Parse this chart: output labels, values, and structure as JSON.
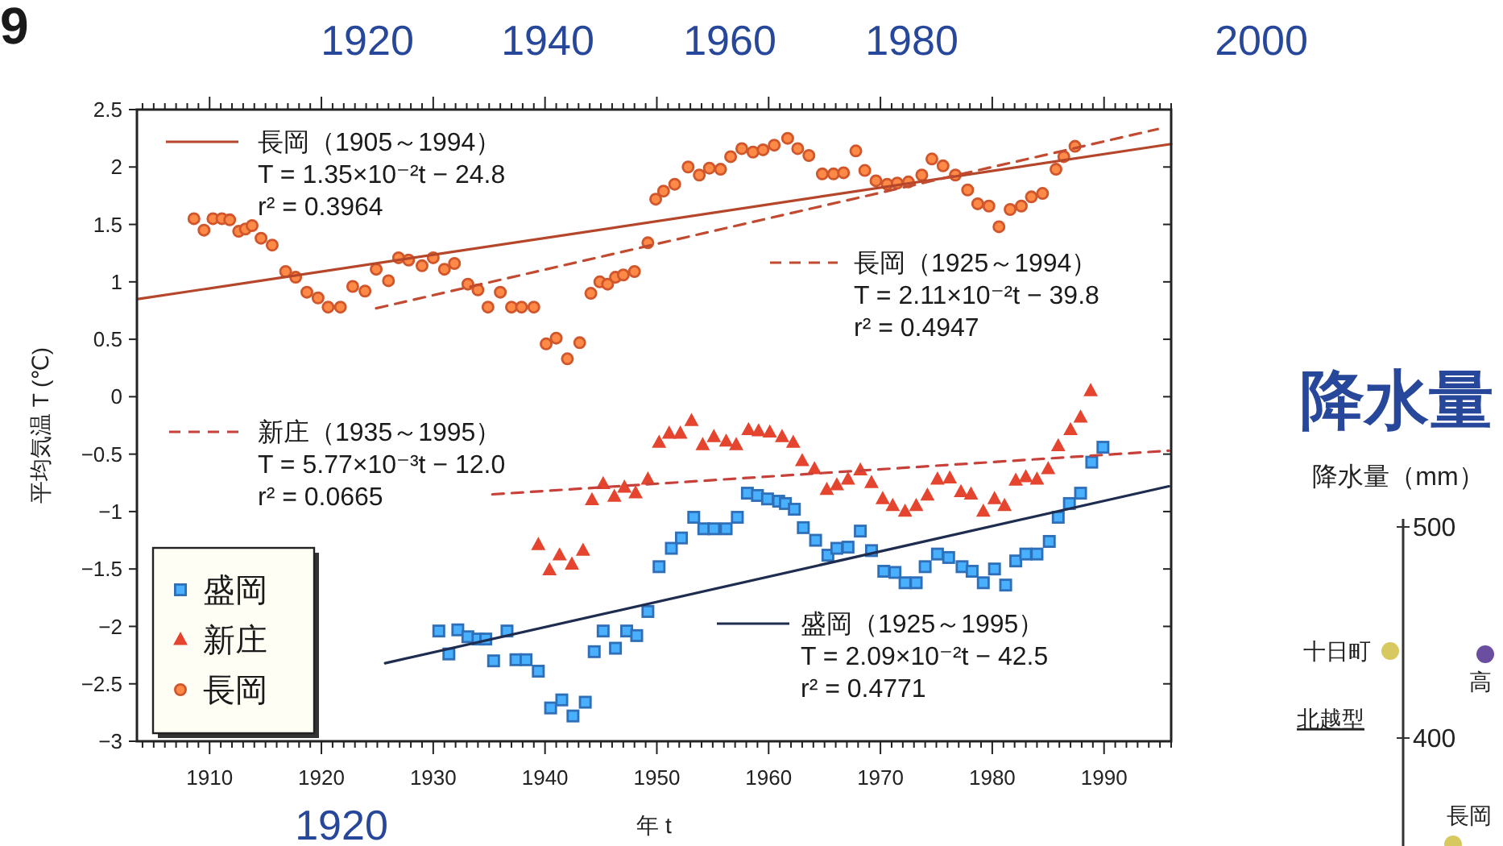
{
  "chart_data": [
    {
      "type": "scatter",
      "xlabel": "年 t",
      "ylabel": "平均気温 T (℃)",
      "xlim": [
        1903.5,
        1996
      ],
      "xticks": [
        {
          "value": 1904,
          "label": null
        },
        {
          "value": 1905,
          "label": null
        },
        {
          "value": 1906,
          "label": null
        },
        {
          "value": 1907,
          "label": null
        },
        {
          "value": 1908,
          "label": null
        },
        {
          "value": 1909,
          "label": null
        },
        1910,
        {
          "value": 1911,
          "label": null
        },
        {
          "value": 1912,
          "label": null
        },
        {
          "value": 1913,
          "label": null
        },
        {
          "value": 1914,
          "label": null
        },
        {
          "value": 1915,
          "label": null
        },
        {
          "value": 1916,
          "label": null
        },
        {
          "value": 1917,
          "label": null
        },
        {
          "value": 1918,
          "label": null
        },
        {
          "value": 1919,
          "label": null
        },
        1920,
        {
          "value": 1921,
          "label": null
        },
        {
          "value": 1922,
          "label": null
        },
        {
          "value": 1923,
          "label": null
        },
        {
          "value": 1924,
          "label": null
        },
        {
          "value": 1925,
          "label": null
        },
        {
          "value": 1926,
          "label": null
        },
        {
          "value": 1927,
          "label": null
        },
        {
          "value": 1928,
          "label": null
        },
        {
          "value": 1929,
          "label": null
        },
        1930,
        {
          "value": 1931,
          "label": null
        },
        {
          "value": 1932,
          "label": null
        },
        {
          "value": 1933,
          "label": null
        },
        {
          "value": 1934,
          "label": null
        },
        {
          "value": 1935,
          "label": null
        },
        {
          "value": 1936,
          "label": null
        },
        {
          "value": 1937,
          "label": null
        },
        {
          "value": 1938,
          "label": null
        },
        {
          "value": 1939,
          "label": null
        },
        1940,
        {
          "value": 1941,
          "label": null
        },
        {
          "value": 1942,
          "label": null
        },
        {
          "value": 1943,
          "label": null
        },
        {
          "value": 1944,
          "label": null
        },
        {
          "value": 1945,
          "label": null
        },
        {
          "value": 1946,
          "label": null
        },
        {
          "value": 1947,
          "label": null
        },
        {
          "value": 1948,
          "label": null
        },
        {
          "value": 1949,
          "label": null
        },
        1950,
        {
          "value": 1951,
          "label": null
        },
        {
          "value": 1952,
          "label": null
        },
        {
          "value": 1953,
          "label": null
        },
        {
          "value": 1954,
          "label": null
        },
        {
          "value": 1955,
          "label": null
        },
        {
          "value": 1956,
          "label": null
        },
        {
          "value": 1957,
          "label": null
        },
        {
          "value": 1958,
          "label": null
        },
        {
          "value": 1959,
          "label": null
        },
        1960,
        {
          "value": 1961,
          "label": null
        },
        {
          "value": 1962,
          "label": null
        },
        {
          "value": 1963,
          "label": null
        },
        {
          "value": 1964,
          "label": null
        },
        {
          "value": 1965,
          "label": null
        },
        {
          "value": 1966,
          "label": null
        },
        {
          "value": 1967,
          "label": null
        },
        {
          "value": 1968,
          "label": null
        },
        {
          "value": 1969,
          "label": null
        },
        1970,
        {
          "value": 1971,
          "label": null
        },
        {
          "value": 1972,
          "label": null
        },
        {
          "value": 1973,
          "label": null
        },
        {
          "value": 1974,
          "label": null
        },
        {
          "value": 1975,
          "label": null
        },
        {
          "value": 1976,
          "label": null
        },
        {
          "value": 1977,
          "label": null
        },
        {
          "value": 1978,
          "label": null
        },
        {
          "value": 1979,
          "label": null
        },
        1980,
        {
          "value": 1981,
          "label": null
        },
        {
          "value": 1982,
          "label": null
        },
        {
          "value": 1983,
          "label": null
        },
        {
          "value": 1984,
          "label": null
        },
        {
          "value": 1985,
          "label": null
        },
        {
          "value": 1986,
          "label": null
        },
        {
          "value": 1987,
          "label": null
        },
        {
          "value": 1988,
          "label": null
        },
        {
          "value": 1989,
          "label": null
        },
        1990,
        {
          "value": 1991,
          "label": null
        },
        {
          "value": 1992,
          "label": null
        },
        {
          "value": 1993,
          "label": null
        },
        {
          "value": 1994,
          "label": null
        },
        {
          "value": 1995,
          "label": null
        },
        {
          "value": 1996,
          "label": null
        }
      ],
      "ylim": [
        -3,
        2.5
      ],
      "yticks": [
        {
          "value": -3,
          "label": "−3"
        },
        {
          "value": -2.5,
          "label": "−2.5"
        },
        {
          "value": -2,
          "label": "−2"
        },
        {
          "value": -1.5,
          "label": "−1.5"
        },
        {
          "value": -1,
          "label": "−1"
        },
        {
          "value": -0.5,
          "label": "−0.5"
        },
        0,
        0.5,
        1,
        1.5,
        2,
        2.5
      ],
      "legend": "bottom left",
      "series": [
        {
          "name": "盛岡",
          "marker": "square",
          "color": "#2e6fb8",
          "x": [
            1930.5,
            1931.4,
            1932.2,
            1933.1,
            1934.0,
            1934.7,
            1935.4,
            1936.6,
            1937.4,
            1938.3,
            1939.4,
            1940.5,
            1941.5,
            1942.5,
            1943.6,
            1944.4,
            1945.2,
            1946.3,
            1947.3,
            1948.2,
            1949.2,
            1950.2,
            1951.3,
            1952.2,
            1953.3,
            1954.2,
            1955.1,
            1956.2,
            1957.2,
            1958.1,
            1959.0,
            1959.9,
            1960.9,
            1961.5,
            1962.3,
            1963.1,
            1964.2,
            1965.3,
            1966.1,
            1967.1,
            1968.2,
            1969.2,
            1970.3,
            1971.3,
            1972.2,
            1973.2,
            1974.0,
            1975.1,
            1976.1,
            1977.3,
            1978.2,
            1979.2,
            1980.2,
            1981.2,
            1982.1,
            1983.0,
            1984.0,
            1985.1,
            1985.9,
            1986.9,
            1987.9,
            1988.9,
            1989.9
          ],
          "values": [
            -2.04,
            -2.24,
            -2.03,
            -2.09,
            -2.11,
            -2.11,
            -2.3,
            -2.04,
            -2.29,
            -2.29,
            -2.39,
            -2.71,
            -2.64,
            -2.78,
            -2.66,
            -2.22,
            -2.04,
            -2.19,
            -2.04,
            -2.08,
            -1.87,
            -1.48,
            -1.32,
            -1.23,
            -1.05,
            -1.15,
            -1.15,
            -1.15,
            -1.05,
            -0.84,
            -0.86,
            -0.89,
            -0.91,
            -0.93,
            -0.98,
            -1.14,
            -1.25,
            -1.38,
            -1.32,
            -1.31,
            -1.17,
            -1.34,
            -1.52,
            -1.53,
            -1.62,
            -1.62,
            -1.48,
            -1.37,
            -1.4,
            -1.48,
            -1.52,
            -1.62,
            -1.5,
            -1.64,
            -1.43,
            -1.37,
            -1.37,
            -1.26,
            -1.05,
            -0.93,
            -0.84,
            -0.57,
            -0.44
          ]
        },
        {
          "name": "新庄",
          "marker": "triangle",
          "color": "#e5452f",
          "x": [
            1939.4,
            1940.4,
            1941.3,
            1942.4,
            1943.4,
            1944.2,
            1945.2,
            1946.2,
            1947.1,
            1948.1,
            1949.2,
            1950.2,
            1951.1,
            1952.1,
            1953.1,
            1954.1,
            1955.1,
            1956.2,
            1957.1,
            1958.2,
            1959.1,
            1960.1,
            1961.2,
            1962.2,
            1963.0,
            1964.1,
            1965.2,
            1966.1,
            1967.1,
            1968.2,
            1969.2,
            1970.2,
            1971.1,
            1972.2,
            1973.2,
            1974.2,
            1975.1,
            1976.2,
            1977.2,
            1978.1,
            1979.2,
            1980.2,
            1981.1,
            1982.1,
            1983.0,
            1984.0,
            1985.0,
            1985.9,
            1987.0,
            1987.9,
            1988.8
          ],
          "values": [
            -1.29,
            -1.51,
            -1.38,
            -1.46,
            -1.34,
            -0.9,
            -0.76,
            -0.87,
            -0.79,
            -0.84,
            -0.72,
            -0.4,
            -0.32,
            -0.32,
            -0.21,
            -0.42,
            -0.35,
            -0.39,
            -0.42,
            -0.29,
            -0.3,
            -0.31,
            -0.35,
            -0.4,
            -0.56,
            -0.63,
            -0.81,
            -0.77,
            -0.72,
            -0.64,
            -0.75,
            -0.89,
            -0.95,
            -1.0,
            -0.95,
            -0.86,
            -0.72,
            -0.71,
            -0.83,
            -0.85,
            -1.0,
            -0.89,
            -0.95,
            -0.73,
            -0.7,
            -0.72,
            -0.63,
            -0.43,
            -0.29,
            -0.18,
            0.05
          ]
        },
        {
          "name": "長岡",
          "marker": "circle",
          "color": "#d0562c",
          "x": [
            1908.6,
            1909.5,
            1910.3,
            1911.1,
            1911.8,
            1912.6,
            1913.2,
            1913.8,
            1914.6,
            1915.6,
            1916.8,
            1917.7,
            1918.7,
            1919.7,
            1920.6,
            1921.7,
            1922.8,
            1923.9,
            1924.9,
            1926.0,
            1926.9,
            1927.8,
            1929.0,
            1930.0,
            1931.0,
            1931.9,
            1933.1,
            1934.0,
            1934.9,
            1936.0,
            1937.0,
            1937.9,
            1939.0,
            1940.1,
            1941.0,
            1942.0,
            1943.1,
            1944.1,
            1944.9,
            1945.6,
            1946.3,
            1947.0,
            1948.0,
            1949.2,
            1949.9,
            1950.6,
            1951.6,
            1952.8,
            1953.8,
            1954.7,
            1955.7,
            1956.6,
            1957.6,
            1958.6,
            1959.5,
            1960.5,
            1961.7,
            1962.6,
            1963.6,
            1964.8,
            1965.8,
            1966.7,
            1967.8,
            1968.6,
            1969.6,
            1970.6,
            1971.5,
            1972.5,
            1973.7,
            1974.6,
            1975.6,
            1976.7,
            1977.8,
            1978.7,
            1979.7,
            1980.6,
            1981.6,
            1982.6,
            1983.5,
            1984.5,
            1985.7,
            1986.4,
            1987.4
          ],
          "values": [
            1.55,
            1.45,
            1.55,
            1.55,
            1.54,
            1.44,
            1.46,
            1.49,
            1.38,
            1.32,
            1.09,
            1.04,
            0.91,
            0.86,
            0.78,
            0.78,
            0.96,
            0.92,
            1.11,
            1.01,
            1.21,
            1.19,
            1.14,
            1.21,
            1.11,
            1.16,
            0.98,
            0.93,
            0.78,
            0.91,
            0.78,
            0.78,
            0.78,
            0.46,
            0.51,
            0.33,
            0.47,
            0.9,
            1.0,
            0.98,
            1.04,
            1.06,
            1.09,
            1.34,
            1.72,
            1.79,
            1.85,
            2.0,
            1.93,
            1.99,
            1.98,
            2.09,
            2.16,
            2.13,
            2.15,
            2.19,
            2.25,
            2.16,
            2.1,
            1.94,
            1.94,
            1.95,
            2.14,
            1.97,
            1.88,
            1.85,
            1.86,
            1.87,
            1.93,
            2.07,
            2.01,
            1.93,
            1.8,
            1.68,
            1.66,
            1.48,
            1.63,
            1.66,
            1.74,
            1.77,
            1.98,
            2.09,
            2.18
          ]
        },
        {
          "type": "line",
          "line_style": "solid",
          "color": "#b5462a",
          "x": [
            1903.6,
            1996
          ],
          "values": [
            0.85,
            2.2
          ]
        },
        {
          "type": "line",
          "line_style": "dashed",
          "color": "#c24a30",
          "x": [
            1924.9,
            1994.8
          ],
          "values": [
            0.77,
            2.33
          ]
        },
        {
          "type": "line",
          "line_style": "dashed",
          "color": "#c8403a",
          "x": [
            1935.3,
            1995.8
          ],
          "values": [
            -0.85,
            -0.47
          ]
        },
        {
          "type": "line",
          "line_style": "solid",
          "color": "#1e2d4f",
          "x": [
            1925.7,
            1995.8
          ],
          "values": [
            -2.32,
            -0.78
          ]
        }
      ],
      "annotations": [
        "長岡（1905～1994）",
        "T = 1.35×10⁻²t − 24.8",
        "r² = 0.3964",
        "長岡（1925～1994）",
        "T = 2.11×10⁻²t − 39.8",
        "r² = 0.4947",
        "新庄（1935～1995）",
        "T = 5.77×10⁻³t − 12.0",
        "r² = 0.0665",
        "盛岡（1925～1995）",
        "T = 2.09×10⁻²t − 42.5",
        "r² = 0.4771",
        "9",
        "1920",
        "1940",
        "1960",
        "1980",
        "2000",
        "1920"
      ]
    },
    {
      "type": "other",
      "title": "降水量",
      "ylabel": "降水量（mm）",
      "annotations": [
        "500",
        "400",
        "十日町",
        "北越型",
        "高",
        "長岡"
      ]
    }
  ]
}
